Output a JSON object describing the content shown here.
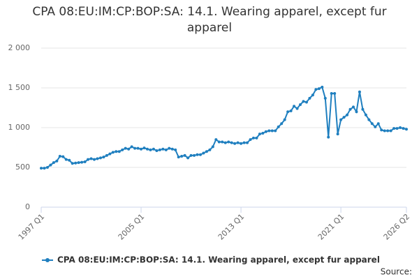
{
  "chart_data": {
    "type": "line",
    "title": "CPA 08:EU:IM:CP:BOP:SA: 14.1. Wearing apparel, except fur apparel",
    "source": "Source:",
    "categories": [
      "1997 Q1",
      null,
      null,
      null,
      null,
      null,
      null,
      null,
      null,
      null,
      null,
      null,
      null,
      null,
      null,
      null,
      null,
      null,
      null,
      null,
      null,
      null,
      null,
      null,
      null,
      null,
      null,
      null,
      null,
      null,
      null,
      null,
      "2005 Q1",
      null,
      null,
      null,
      null,
      null,
      null,
      null,
      null,
      null,
      null,
      null,
      null,
      null,
      null,
      null,
      null,
      null,
      null,
      null,
      null,
      null,
      null,
      null,
      null,
      null,
      null,
      null,
      null,
      null,
      null,
      null,
      "2013 Q1",
      null,
      null,
      null,
      null,
      null,
      null,
      null,
      null,
      null,
      null,
      null,
      null,
      null,
      null,
      null,
      null,
      null,
      null,
      null,
      null,
      null,
      null,
      null,
      null,
      null,
      null,
      null,
      null,
      null,
      null,
      null,
      "2021 Q1",
      null,
      null,
      null,
      null,
      null,
      null,
      null,
      null,
      null,
      null,
      null,
      null,
      null,
      null,
      null,
      null,
      null,
      null,
      null,
      null,
      "2026 Q2"
    ],
    "series": [
      {
        "name": "CPA 08:EU:IM:CP:BOP:SA: 14.1. Wearing apparel, except fur apparel",
        "color": "#1f7fbf",
        "values": [
          490,
          490,
          500,
          530,
          560,
          580,
          640,
          635,
          600,
          590,
          550,
          555,
          560,
          565,
          570,
          600,
          610,
          600,
          610,
          620,
          630,
          650,
          670,
          690,
          700,
          700,
          720,
          740,
          730,
          760,
          740,
          740,
          730,
          745,
          730,
          720,
          730,
          710,
          720,
          730,
          720,
          740,
          730,
          720,
          630,
          640,
          650,
          620,
          650,
          650,
          660,
          660,
          680,
          700,
          720,
          760,
          850,
          820,
          820,
          810,
          820,
          810,
          800,
          810,
          800,
          810,
          810,
          850,
          870,
          870,
          920,
          930,
          950,
          960,
          960,
          960,
          1010,
          1050,
          1100,
          1200,
          1210,
          1270,
          1240,
          1290,
          1330,
          1320,
          1370,
          1410,
          1480,
          1490,
          1510,
          1370,
          880,
          1430,
          1430,
          920,
          1100,
          1130,
          1160,
          1230,
          1260,
          1200,
          1450,
          1230,
          1160,
          1100,
          1050,
          1010,
          1050,
          970,
          960,
          960,
          960,
          990,
          990,
          1000,
          990,
          980
        ]
      }
    ],
    "ylim": [
      0,
      2000
    ],
    "yticks": [
      0,
      500,
      {
        "value": 1000,
        "label": "1 000"
      },
      {
        "value": 1500,
        "label": "1 500"
      },
      {
        "value": 2000,
        "label": "2 000"
      }
    ],
    "grid": true
  }
}
